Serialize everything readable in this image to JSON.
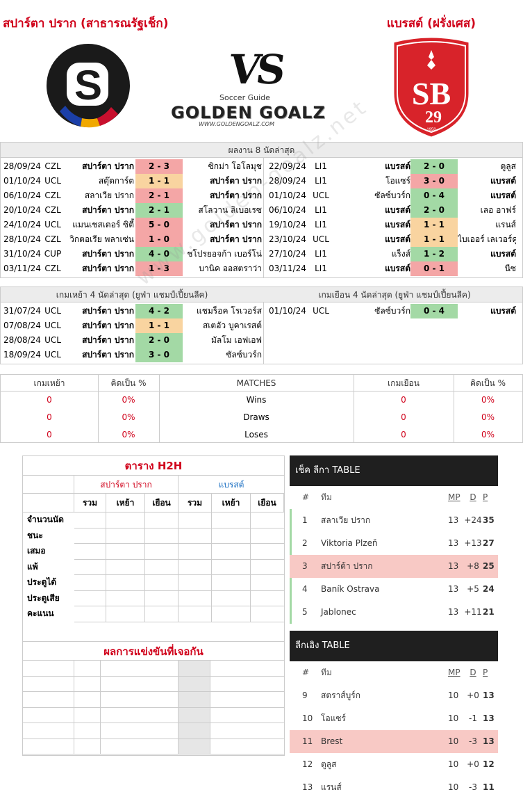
{
  "home_title": "สปาร์ตา ปราก (สาธารณรัฐเช็ก)",
  "away_title": "แบรสต์ (ฝรั่งเศส)",
  "vs_text": "VS",
  "brand": {
    "small": "Soccer Guide",
    "big": "GOLDEN GOALZ",
    "url": "WWW.GOLDENGOALZ.COM"
  },
  "away_logo": {
    "letters": "SB",
    "number": "29",
    "year": "1950"
  },
  "watermark": "www.golden-goalz.net",
  "last8": {
    "title": "ผลงาน 8 นัดล่าสุด",
    "home": [
      {
        "date": "28/09/24",
        "comp": "CZL",
        "left": "สปาร์ตา ปราก",
        "score": "2 - 3",
        "right": "ซิกม่า โอโลมุช",
        "res": "lose",
        "bold": "left"
      },
      {
        "date": "01/10/24",
        "comp": "UCL",
        "left": "สตุ๊ตการ์ต",
        "score": "1 - 1",
        "right": "สปาร์ตา ปราก",
        "res": "draw",
        "bold": "right"
      },
      {
        "date": "06/10/24",
        "comp": "CZL",
        "left": "สลาเวีย ปราก",
        "score": "2 - 1",
        "right": "สปาร์ตา ปราก",
        "res": "lose",
        "bold": "right"
      },
      {
        "date": "20/10/24",
        "comp": "CZL",
        "left": "สปาร์ตา ปราก",
        "score": "2 - 1",
        "right": "สโลวาน ลิเบอเรซ",
        "res": "win",
        "bold": "left"
      },
      {
        "date": "24/10/24",
        "comp": "UCL",
        "left": "แมนเชสเตอร์ ซิตี้",
        "score": "5 - 0",
        "right": "สปาร์ตา ปราก",
        "res": "lose",
        "bold": "right"
      },
      {
        "date": "28/10/24",
        "comp": "CZL",
        "left": "วิกตอเรีย พลาเซ่น",
        "score": "1 - 0",
        "right": "สปาร์ตา ปราก",
        "res": "lose",
        "bold": "right"
      },
      {
        "date": "31/10/24",
        "comp": "CUP",
        "left": "สปาร์ตา ปราก",
        "score": "4 - 0",
        "right": "ชโปรยอจก้า เบอร์โน่",
        "res": "win",
        "bold": "left"
      },
      {
        "date": "03/11/24",
        "comp": "CZL",
        "left": "สปาร์ตา ปราก",
        "score": "1 - 3",
        "right": "บานิค ออสตราว่า",
        "res": "lose",
        "bold": "left"
      }
    ],
    "away": [
      {
        "date": "22/09/24",
        "comp": "LI1",
        "left": "แบรสต์",
        "score": "2 - 0",
        "right": "ตูลูส",
        "res": "win",
        "bold": "left"
      },
      {
        "date": "28/09/24",
        "comp": "LI1",
        "left": "โอแซร์",
        "score": "3 - 0",
        "right": "แบรสต์",
        "res": "lose",
        "bold": "right"
      },
      {
        "date": "01/10/24",
        "comp": "UCL",
        "left": "ซัลซ์บวร์ก",
        "score": "0 - 4",
        "right": "แบรสต์",
        "res": "win",
        "bold": "right"
      },
      {
        "date": "06/10/24",
        "comp": "LI1",
        "left": "แบรสต์",
        "score": "2 - 0",
        "right": "เลอ อาฟร์",
        "res": "win",
        "bold": "left"
      },
      {
        "date": "19/10/24",
        "comp": "LI1",
        "left": "แบรสต์",
        "score": "1 - 1",
        "right": "แรนส์",
        "res": "draw",
        "bold": "left"
      },
      {
        "date": "23/10/24",
        "comp": "UCL",
        "left": "แบรสต์",
        "score": "1 - 1",
        "right": "ไบเออร์ เลเวอร์คูเซน",
        "res": "draw",
        "bold": "left"
      },
      {
        "date": "27/10/24",
        "comp": "LI1",
        "left": "แร็งส์",
        "score": "1 - 2",
        "right": "แบรสต์",
        "res": "win",
        "bold": "right"
      },
      {
        "date": "03/11/24",
        "comp": "LI1",
        "left": "แบรสต์",
        "score": "0 - 1",
        "right": "นีซ",
        "res": "lose",
        "bold": "left"
      }
    ]
  },
  "last4": {
    "home_title": "เกมเหย้า 4 นัดล่าสุด (ยูฟ่า แชมป์เปี้ยนลีค)",
    "away_title": "เกมเยือน 4 นัดล่าสุด (ยูฟ่า แชมป์เปี้ยนลีค)",
    "home": [
      {
        "date": "31/07/24",
        "comp": "UCL",
        "left": "สปาร์ตา ปราก",
        "score": "4 - 2",
        "right": "แชมร็อค โรเวอร์ส",
        "res": "win"
      },
      {
        "date": "07/08/24",
        "comp": "UCL",
        "left": "สปาร์ตา ปราก",
        "score": "1 - 1",
        "right": "สเตอัว บูคาเรสต์",
        "res": "draw"
      },
      {
        "date": "28/08/24",
        "comp": "UCL",
        "left": "สปาร์ตา ปราก",
        "score": "2 - 0",
        "right": "มัลโม เอฟเอฟ",
        "res": "win"
      },
      {
        "date": "18/09/24",
        "comp": "UCL",
        "left": "สปาร์ตา ปราก",
        "score": "3 - 0",
        "right": "ซัลซ์บวร์ก",
        "res": "win"
      }
    ],
    "away": [
      {
        "date": "01/10/24",
        "comp": "UCL",
        "left": "ซัลซ์บวร์ก",
        "score": "0 - 4",
        "right": "แบรสต์",
        "res": "win"
      }
    ]
  },
  "stats": {
    "headers": [
      "เกมเหย้า",
      "คิดเป็น %",
      "MATCHES",
      "เกมเยือน",
      "คิดเป็น %"
    ],
    "rows": [
      {
        "home": "0",
        "home_pct": "0%",
        "label": "Wins",
        "away": "0",
        "away_pct": "0%"
      },
      {
        "home": "0",
        "home_pct": "0%",
        "label": "Draws",
        "away": "0",
        "away_pct": "0%"
      },
      {
        "home": "0",
        "home_pct": "0%",
        "label": "Loses",
        "away": "0",
        "away_pct": "0%"
      }
    ]
  },
  "h2h": {
    "title": "ตาราง H2H",
    "home_team": "สปาร์ตา ปราก",
    "away_team": "แบรสต์",
    "sub_cols": [
      "รวม",
      "เหย้า",
      "เยือน",
      "รวม",
      "เหย้า",
      "เยือน"
    ],
    "row_labels": [
      "จำนวนนัด",
      "ชนะ",
      "เสมอ",
      "แพ้",
      "ประตูได้",
      "ประตูเสีย",
      "คะแนน"
    ],
    "results_title": "ผลการแข่งขันที่เจอกัน"
  },
  "czech_table": {
    "title": "เช็ค ลีกา TABLE",
    "headers": {
      "num": "#",
      "team": "ทีม",
      "mp": "MP",
      "d": "D",
      "p": "P"
    },
    "rows": [
      {
        "pos": "1",
        "team": "สลาเวีย ปราก",
        "mp": "13",
        "d": "+24",
        "p": "35"
      },
      {
        "pos": "2",
        "team": "Viktoria Plzeň",
        "mp": "13",
        "d": "+13",
        "p": "27"
      },
      {
        "pos": "3",
        "team": "สปาร์ต้า ปราก",
        "mp": "13",
        "d": "+8",
        "p": "25"
      },
      {
        "pos": "4",
        "team": "Baník Ostrava",
        "mp": "13",
        "d": "+5",
        "p": "24"
      },
      {
        "pos": "5",
        "team": "Jablonec",
        "mp": "13",
        "d": "+11",
        "p": "21"
      }
    ]
  },
  "ligue_table": {
    "title": "ลีกเอิง TABLE",
    "headers": {
      "num": "#",
      "team": "ทีม",
      "mp": "MP",
      "d": "D",
      "p": "P"
    },
    "rows": [
      {
        "pos": "9",
        "team": "สตราส์บูร์ก",
        "mp": "10",
        "d": "+0",
        "p": "13"
      },
      {
        "pos": "10",
        "team": "โอแซร์",
        "mp": "10",
        "d": "-1",
        "p": "13"
      },
      {
        "pos": "11",
        "team": "Brest",
        "mp": "10",
        "d": "-3",
        "p": "13"
      },
      {
        "pos": "12",
        "team": "ตูลูส",
        "mp": "10",
        "d": "+0",
        "p": "12"
      },
      {
        "pos": "13",
        "team": "แรนส์",
        "mp": "10",
        "d": "-3",
        "p": "11"
      }
    ]
  }
}
